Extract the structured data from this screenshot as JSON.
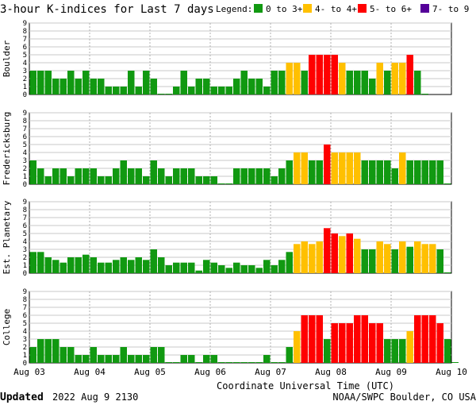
{
  "header": {
    "title": "3-hour K-indices for Last 7 days",
    "legend_label": "Legend:",
    "legend": [
      {
        "label": "0 to 3+",
        "color": "#119911"
      },
      {
        "label": "4- to 4+",
        "color": "#ffc000"
      },
      {
        "label": "5- to 6+",
        "color": "#ff0000"
      },
      {
        "label": "7- to 9",
        "color": "#550099"
      }
    ]
  },
  "footer": {
    "updated_label": "Updated",
    "updated_value": "2022 Aug  9 2130",
    "credit": "NOAA/SWPC Boulder, CO USA"
  },
  "chart_data": {
    "type": "bar",
    "title": "3-hour K-indices for Last 7 days",
    "xlabel": "Coordinate Universal Time (UTC)",
    "x_ticks": [
      "Aug 03",
      "Aug 04",
      "Aug 05",
      "Aug 06",
      "Aug 07",
      "Aug 08",
      "Aug 09",
      "Aug 10"
    ],
    "y_ticks": [
      "0",
      "1",
      "2",
      "3",
      "4",
      "5",
      "6",
      "7",
      "8",
      "9"
    ],
    "ylim": [
      0,
      9
    ],
    "bins_per_day": 8,
    "panels": [
      {
        "name": "Boulder",
        "values": [
          3,
          3,
          3,
          2,
          2,
          3,
          2,
          3,
          2,
          2,
          1,
          1,
          1,
          3,
          1,
          3,
          2,
          0,
          0,
          1,
          3,
          1,
          2,
          2,
          1,
          1,
          1,
          2,
          3,
          2,
          2,
          1,
          3,
          3,
          4,
          4,
          3,
          5,
          5,
          5,
          5,
          4,
          3,
          3,
          3,
          2,
          4,
          3,
          4,
          4,
          5,
          3,
          0
        ]
      },
      {
        "name": "Fredericksburg",
        "values": [
          3,
          2,
          1,
          2,
          2,
          1,
          2,
          2,
          2,
          1,
          1,
          2,
          3,
          2,
          2,
          1,
          3,
          2,
          1,
          2,
          2,
          2,
          1,
          1,
          1,
          0,
          0,
          2,
          2,
          2,
          2,
          2,
          1,
          2,
          3,
          4,
          4,
          3,
          3,
          5,
          4,
          4,
          4,
          4,
          3,
          3,
          3,
          3,
          2,
          4,
          3,
          3,
          3,
          3,
          3,
          0
        ]
      },
      {
        "name": "Est. Planetary",
        "values": [
          2.67,
          2.67,
          2,
          1.67,
          1.33,
          2,
          2,
          2.33,
          2,
          1.33,
          1.33,
          1.67,
          2,
          1.67,
          2,
          1.67,
          3,
          2,
          1,
          1.33,
          1.33,
          1.33,
          0.33,
          1.67,
          1.33,
          1,
          0.67,
          1.33,
          1,
          1,
          0.67,
          1.67,
          1,
          1.67,
          2.67,
          3.67,
          4,
          3.67,
          4,
          5.67,
          5,
          4.67,
          5,
          4.33,
          3,
          3,
          4,
          3.67,
          3,
          4,
          3.33,
          4,
          3.67,
          3.67,
          3,
          0
        ]
      },
      {
        "name": "College",
        "values": [
          2,
          3,
          3,
          3,
          2,
          2,
          1,
          1,
          2,
          1,
          1,
          1,
          2,
          1,
          1,
          1,
          2,
          2,
          0,
          0,
          1,
          1,
          0,
          1,
          1,
          0,
          0,
          0,
          0,
          0,
          0,
          1,
          0,
          0,
          2,
          4,
          6,
          6,
          6,
          3,
          5,
          5,
          5,
          6,
          6,
          5,
          5,
          3,
          3,
          3,
          4,
          6,
          6,
          6,
          5,
          3,
          0
        ]
      }
    ]
  }
}
